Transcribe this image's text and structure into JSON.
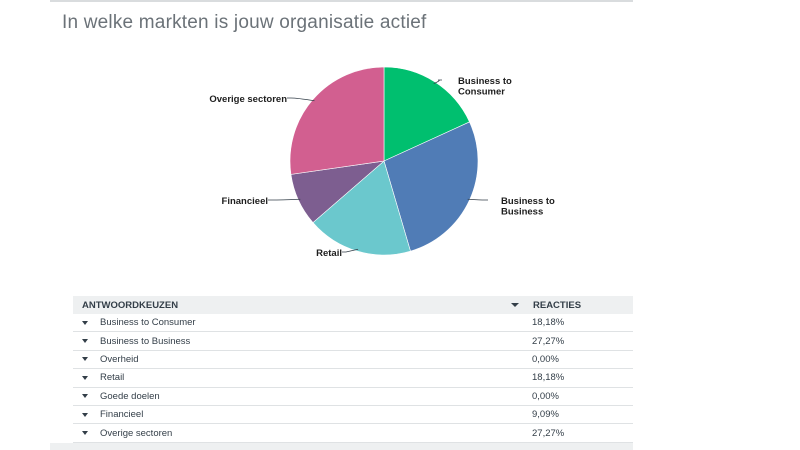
{
  "title": "In welke markten is jouw organisatie actief",
  "table": {
    "col_choice": "ANTWOORDKEUZEN",
    "col_responses": "REACTIES",
    "rows": [
      {
        "label": "Business to Consumer",
        "value": "18,18%"
      },
      {
        "label": "Business to Business",
        "value": "27,27%"
      },
      {
        "label": "Overheid",
        "value": "0,00%"
      },
      {
        "label": "Retail",
        "value": "18,18%"
      },
      {
        "label": "Goede doelen",
        "value": "0,00%"
      },
      {
        "label": "Financieel",
        "value": "9,09%"
      },
      {
        "label": "Overige sectoren",
        "value": "27,27%"
      }
    ]
  },
  "chart_data": {
    "type": "pie",
    "title": "In welke markten is jouw organisatie actief",
    "slices": [
      {
        "label": "Business to Consumer",
        "value": 18.18,
        "color": "#00bf6f"
      },
      {
        "label": "Business to Business",
        "value": 27.27,
        "color": "#507cb6"
      },
      {
        "label": "Retail",
        "value": 18.18,
        "color": "#6bc8cd"
      },
      {
        "label": "Financieel",
        "value": 9.09,
        "color": "#7d5e90"
      },
      {
        "label": "Overige sectoren",
        "value": 27.27,
        "color": "#d25f90"
      }
    ]
  }
}
